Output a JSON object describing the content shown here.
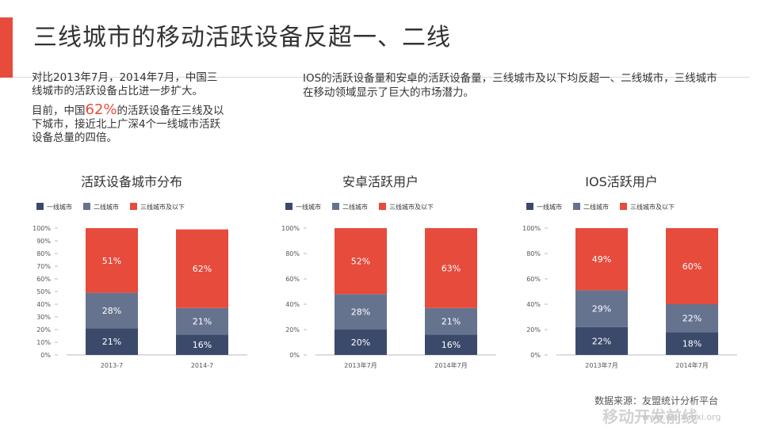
{
  "slide": {
    "title": "三线城市的移动活跃设备反超一、二线",
    "accent_color": "#e64b3c",
    "intro_line1": "对比2013年7月，2014年7月，中国三线城市的活跃设备占比进一步扩大。",
    "intro_line2_pre": "目前，中国",
    "intro_line2_highlight": "62%",
    "intro_line2_post": "的活跃设备在三线及以下城市，接近北上广深4个一线城市活跃设备总量的四倍。",
    "note": "IOS的活跃设备量和安卓的活跃设备量，三线城市及以下均反超一、二线城市，三线城市在移动领域显示了巨大的市场潜力。",
    "source": "数据来源：友盟统计分析平台",
    "watermark": "移动开发前线",
    "watermark_url": "www.weixuexi.org"
  },
  "chart_data": [
    {
      "type": "bar",
      "stacked": true,
      "title": "活跃设备城市分布",
      "categories": [
        "2013-7",
        "2014-7"
      ],
      "series": [
        {
          "name": "一线城市",
          "color": "#3b4a6b",
          "values": [
            21,
            16
          ]
        },
        {
          "name": "二线城市",
          "color": "#66738f",
          "values": [
            28,
            21
          ]
        },
        {
          "name": "三线城市及以下",
          "color": "#e64b3c",
          "values": [
            51,
            62
          ]
        }
      ],
      "ylim": [
        0,
        100
      ],
      "yticks": [
        "0%",
        "10%",
        "20%",
        "30%",
        "40%",
        "50%",
        "60%",
        "70%",
        "80%",
        "90%",
        "100%"
      ],
      "legend": "top-left"
    },
    {
      "type": "bar",
      "stacked": true,
      "title": "安卓活跃用户",
      "categories": [
        "2013年7月",
        "2014年7月"
      ],
      "series": [
        {
          "name": "一线城市",
          "color": "#3b4a6b",
          "values": [
            20,
            16
          ]
        },
        {
          "name": "二线城市",
          "color": "#66738f",
          "values": [
            28,
            21
          ]
        },
        {
          "name": "三线城市及以下",
          "color": "#e64b3c",
          "values": [
            52,
            63
          ]
        }
      ],
      "ylim": [
        0,
        100
      ],
      "yticks": [
        "0%",
        "20%",
        "40%",
        "60%",
        "80%",
        "100%"
      ],
      "legend": "top-left"
    },
    {
      "type": "bar",
      "stacked": true,
      "title": "IOS活跃用户",
      "categories": [
        "2013年7月",
        "2014年7月"
      ],
      "series": [
        {
          "name": "一线城市",
          "color": "#3b4a6b",
          "values": [
            22,
            18
          ]
        },
        {
          "name": "二线城市",
          "color": "#66738f",
          "values": [
            29,
            22
          ]
        },
        {
          "name": "三线城市及以下",
          "color": "#e64b3c",
          "values": [
            49,
            60
          ]
        }
      ],
      "ylim": [
        0,
        100
      ],
      "yticks": [
        "0%",
        "20%",
        "40%",
        "60%",
        "80%",
        "100%"
      ],
      "legend": "top-left"
    }
  ]
}
